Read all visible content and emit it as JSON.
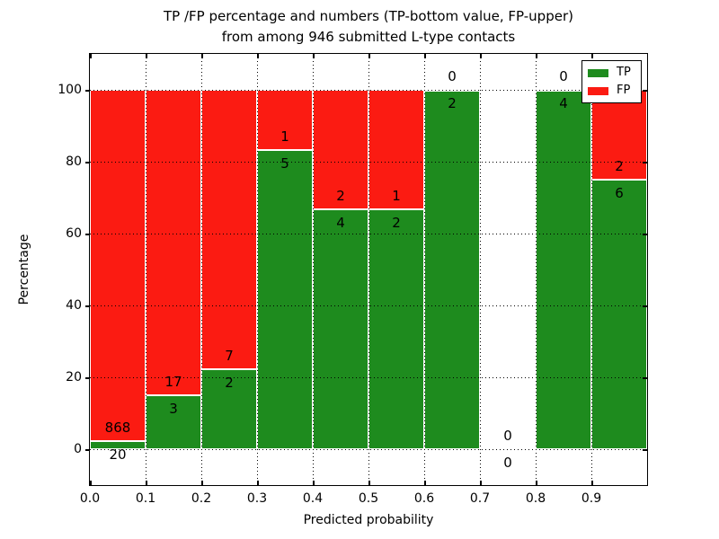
{
  "title": {
    "line1": "TP /FP percentage and numbers (TP-bottom value, FP-upper)",
    "line2": "from among 946 submitted L-type contacts"
  },
  "axes": {
    "xlabel": "Predicted probability",
    "ylabel": "Percentage",
    "x_tick_labels": [
      "0.0",
      "0.1",
      "0.2",
      "0.3",
      "0.4",
      "0.5",
      "0.6",
      "0.7",
      "0.8",
      "0.9"
    ],
    "y_tick_labels": [
      "0",
      "20",
      "40",
      "60",
      "80",
      "100"
    ],
    "xlim": [
      0.0,
      1.0
    ],
    "ylim": [
      -10,
      110
    ],
    "grid_style": "dotted"
  },
  "legend": {
    "position": "upper-right",
    "entries": [
      {
        "label": "TP",
        "color": "#1e8b1e"
      },
      {
        "label": "FP",
        "color": "#fb1b12"
      }
    ]
  },
  "chart_data": {
    "type": "bar",
    "stacked": true,
    "note": "stacked percentage bars; counts annotated: FP above green/red boundary, TP below",
    "bin_edges": [
      0.0,
      0.1,
      0.2,
      0.3,
      0.4,
      0.5,
      0.6,
      0.7,
      0.8,
      0.9,
      1.0
    ],
    "series": [
      {
        "name": "TP",
        "color": "#1e8b1e",
        "counts": [
          20,
          3,
          2,
          5,
          4,
          2,
          2,
          0,
          4,
          6
        ]
      },
      {
        "name": "FP",
        "color": "#fb1b12",
        "counts": [
          868,
          17,
          7,
          1,
          2,
          1,
          0,
          0,
          0,
          2
        ]
      }
    ],
    "tp_percent_per_bin": [
      2.25,
      15.0,
      22.2,
      83.3,
      66.7,
      66.7,
      100.0,
      null,
      100.0,
      75.0
    ],
    "bar_edge_color": "#ffffff",
    "ylim": [
      -10,
      110
    ],
    "xlim": [
      0.0,
      1.0
    ]
  }
}
